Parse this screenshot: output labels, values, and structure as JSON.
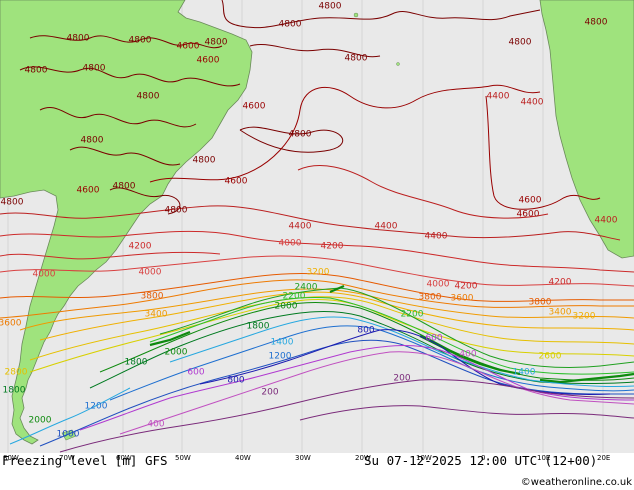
{
  "map": {
    "title": "Freezing level [m] GFS",
    "valid_time": "Su 07-12-2025 12:00 UTC (12+00)",
    "credit": "©weatheronline.co.uk",
    "longitude_ticks": [
      "80W",
      "70W",
      "60W",
      "50W",
      "40W",
      "30W",
      "20W",
      "10W",
      "0",
      "10E",
      "20E"
    ],
    "colors": {
      "ocean": "#e9e9e9",
      "land": "#9fe37d",
      "c4800": "#7a0000",
      "c4600": "#990000",
      "c4400": "#bb1f1f",
      "c4200": "#cc2a2a",
      "c4000": "#d84040",
      "c3800": "#e65a00",
      "c3600": "#ee7a00",
      "c3400": "#f09a00",
      "c3200": "#f0b000",
      "c2800": "#e6c000",
      "c2600": "#d8d000",
      "c2400": "#1fa01f",
      "c2200": "#2bbf2b",
      "c2000": "#0e8a0e",
      "c1800": "#007a20",
      "c1400": "#27a8e0",
      "c1200": "#1e6fd0",
      "c1000": "#2050c0",
      "c800": "#1a1ab0",
      "c600": "#b03ad0",
      "c400": "#c050c0",
      "c200": "#7a2a7a"
    }
  },
  "contour_labels": [
    {
      "v": "4800",
      "c": "c4800"
    },
    {
      "v": "4800",
      "c": "c4800"
    },
    {
      "v": "4800",
      "c": "c4800"
    },
    {
      "v": "4800",
      "c": "c4800"
    },
    {
      "v": "4800",
      "c": "c4800"
    },
    {
      "v": "4800",
      "c": "c4800"
    },
    {
      "v": "4800",
      "c": "c4800"
    },
    {
      "v": "4800",
      "c": "c4800"
    },
    {
      "v": "4800",
      "c": "c4800"
    },
    {
      "v": "4800",
      "c": "c4800"
    },
    {
      "v": "4800",
      "c": "c4800"
    },
    {
      "v": "4800",
      "c": "c4800"
    },
    {
      "v": "4800",
      "c": "c4800"
    },
    {
      "v": "4800",
      "c": "c4800"
    },
    {
      "v": "4800",
      "c": "c4800"
    },
    {
      "v": "4800",
      "c": "c4800"
    },
    {
      "v": "4800",
      "c": "c4800"
    },
    {
      "v": "4600",
      "c": "c4600"
    },
    {
      "v": "4600",
      "c": "c4600"
    },
    {
      "v": "4600",
      "c": "c4600"
    },
    {
      "v": "4600",
      "c": "c4600"
    },
    {
      "v": "4600",
      "c": "c4600"
    },
    {
      "v": "4600",
      "c": "c4600"
    },
    {
      "v": "4600",
      "c": "c4600"
    },
    {
      "v": "4400",
      "c": "c4400"
    },
    {
      "v": "4400",
      "c": "c4400"
    },
    {
      "v": "4400",
      "c": "c4400"
    },
    {
      "v": "4400",
      "c": "c4400"
    },
    {
      "v": "4400",
      "c": "c4400"
    },
    {
      "v": "4400",
      "c": "c4400"
    },
    {
      "v": "4200",
      "c": "c4200"
    },
    {
      "v": "4200",
      "c": "c4200"
    },
    {
      "v": "4200",
      "c": "c4200"
    },
    {
      "v": "4200",
      "c": "c4200"
    },
    {
      "v": "4000",
      "c": "c4000"
    },
    {
      "v": "4000",
      "c": "c4000"
    },
    {
      "v": "4000",
      "c": "c4000"
    },
    {
      "v": "4000",
      "c": "c4000"
    },
    {
      "v": "3800",
      "c": "c3800"
    },
    {
      "v": "3800",
      "c": "c3800"
    },
    {
      "v": "3800",
      "c": "c3800"
    },
    {
      "v": "3600",
      "c": "c3600"
    },
    {
      "v": "3600",
      "c": "c3600"
    },
    {
      "v": "3400",
      "c": "c3400"
    },
    {
      "v": "3400",
      "c": "c3400"
    },
    {
      "v": "3200",
      "c": "c3200"
    },
    {
      "v": "3200",
      "c": "c3200"
    },
    {
      "v": "2800",
      "c": "c2800"
    },
    {
      "v": "2600",
      "c": "c2600"
    },
    {
      "v": "2400",
      "c": "c2400"
    },
    {
      "v": "2200",
      "c": "c2200"
    },
    {
      "v": "2200",
      "c": "c2200"
    },
    {
      "v": "2000",
      "c": "c2000"
    },
    {
      "v": "2000",
      "c": "c2000"
    },
    {
      "v": "2000",
      "c": "c2000"
    },
    {
      "v": "1800",
      "c": "c1800"
    },
    {
      "v": "1800",
      "c": "c1800"
    },
    {
      "v": "1800",
      "c": "c1800"
    },
    {
      "v": "1400",
      "c": "c1400"
    },
    {
      "v": "1400",
      "c": "c1400"
    },
    {
      "v": "1200",
      "c": "c1200"
    },
    {
      "v": "1200",
      "c": "c1200"
    },
    {
      "v": "1000",
      "c": "c1000"
    },
    {
      "v": "800",
      "c": "c800"
    },
    {
      "v": "800",
      "c": "c800"
    },
    {
      "v": "600",
      "c": "c600"
    },
    {
      "v": "600",
      "c": "c600"
    },
    {
      "v": "400",
      "c": "c400"
    },
    {
      "v": "400",
      "c": "c400"
    },
    {
      "v": "200",
      "c": "c200"
    },
    {
      "v": "200",
      "c": "c200"
    }
  ]
}
